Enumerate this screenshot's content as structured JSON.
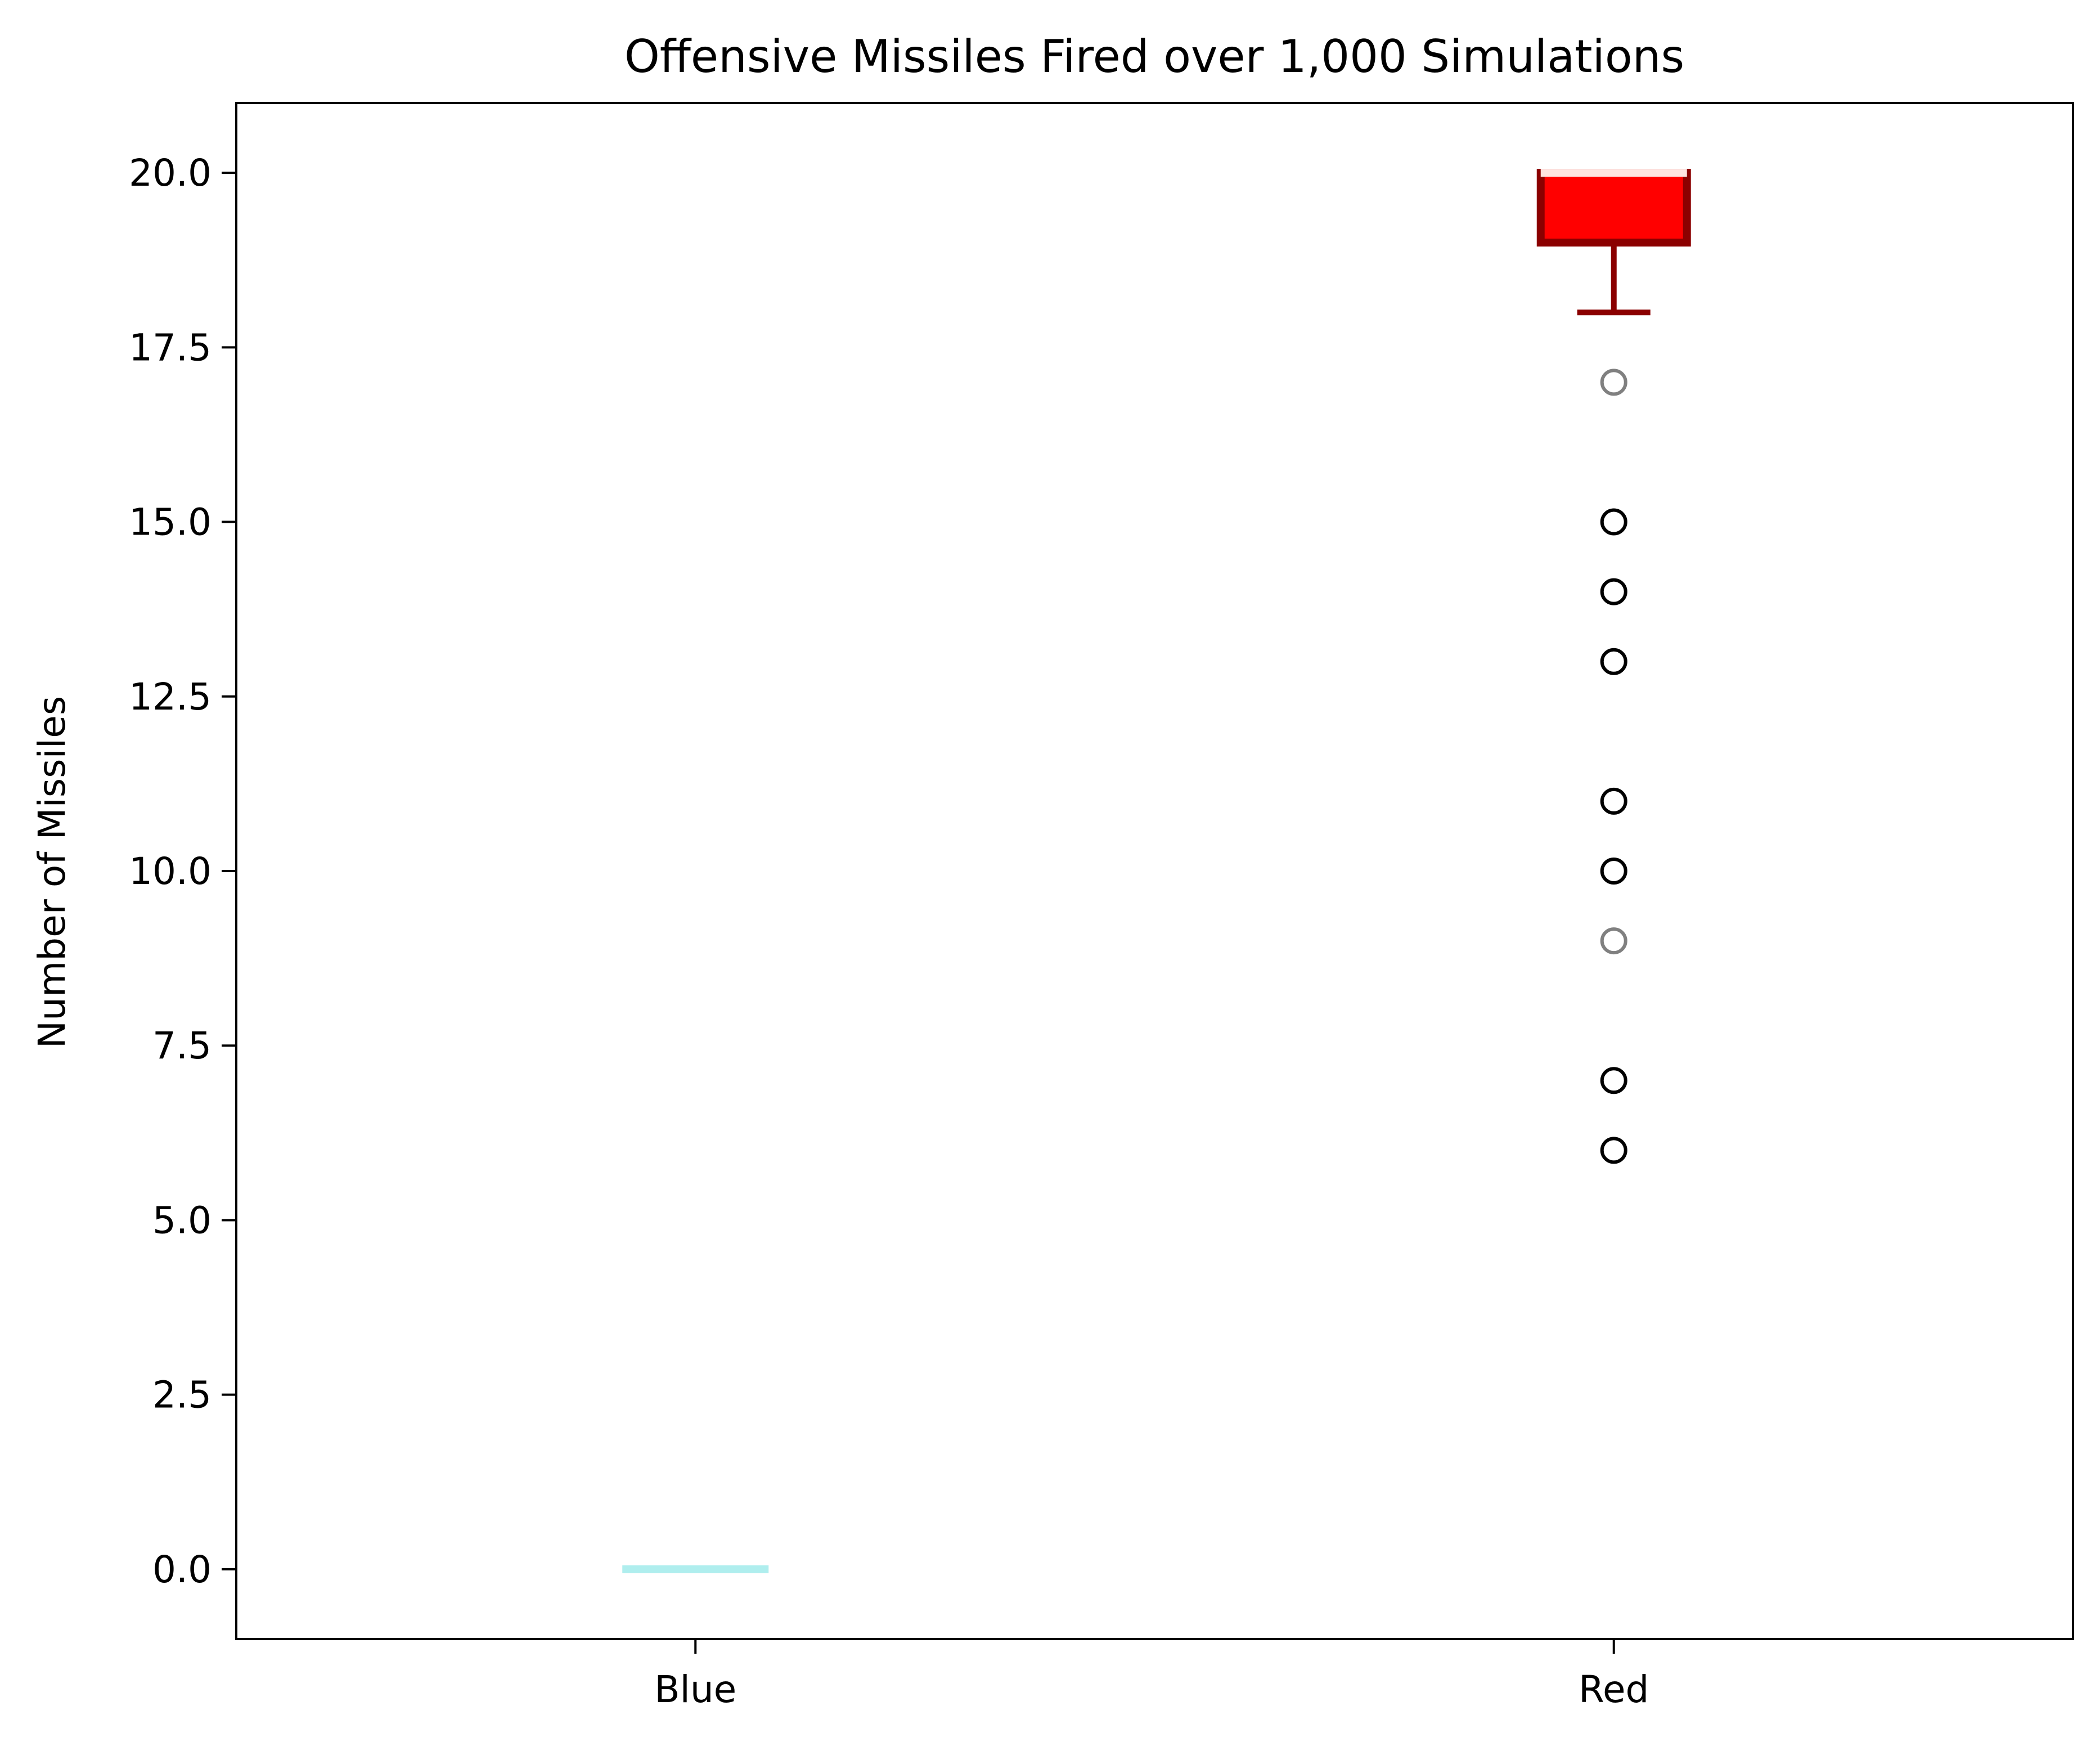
{
  "chart_data": {
    "type": "box",
    "title": "Offensive Missiles Fired over 1,000 Simulations",
    "xlabel": "",
    "ylabel": "Number of Missiles",
    "ylim": [
      -1.0,
      21.0
    ],
    "yticks": [
      "0.0",
      "2.5",
      "5.0",
      "7.5",
      "10.0",
      "12.5",
      "15.0",
      "17.5",
      "20.0"
    ],
    "categories": [
      "Blue",
      "Red"
    ],
    "grid": false,
    "series": [
      {
        "name": "Blue",
        "min": 0,
        "q1": 0,
        "median": 0,
        "q3": 0,
        "max": 0,
        "outliers": [],
        "box_color": "#afeeee",
        "edge_color": "#afeeee",
        "median_color": "#afeeee"
      },
      {
        "name": "Red",
        "min": 18,
        "q1": 19,
        "median": 20,
        "q3": 20,
        "max": 20,
        "outliers": [
          17,
          15,
          14,
          13,
          11,
          10,
          9,
          7,
          6
        ],
        "outlier_colors": [
          "#808080",
          "#000000",
          "#000000",
          "#000000",
          "#000000",
          "#000000",
          "#808080",
          "#000000",
          "#000000"
        ],
        "box_color": "#ff0000",
        "edge_color": "#8b0000",
        "median_color": "#ffe4e1"
      }
    ]
  }
}
